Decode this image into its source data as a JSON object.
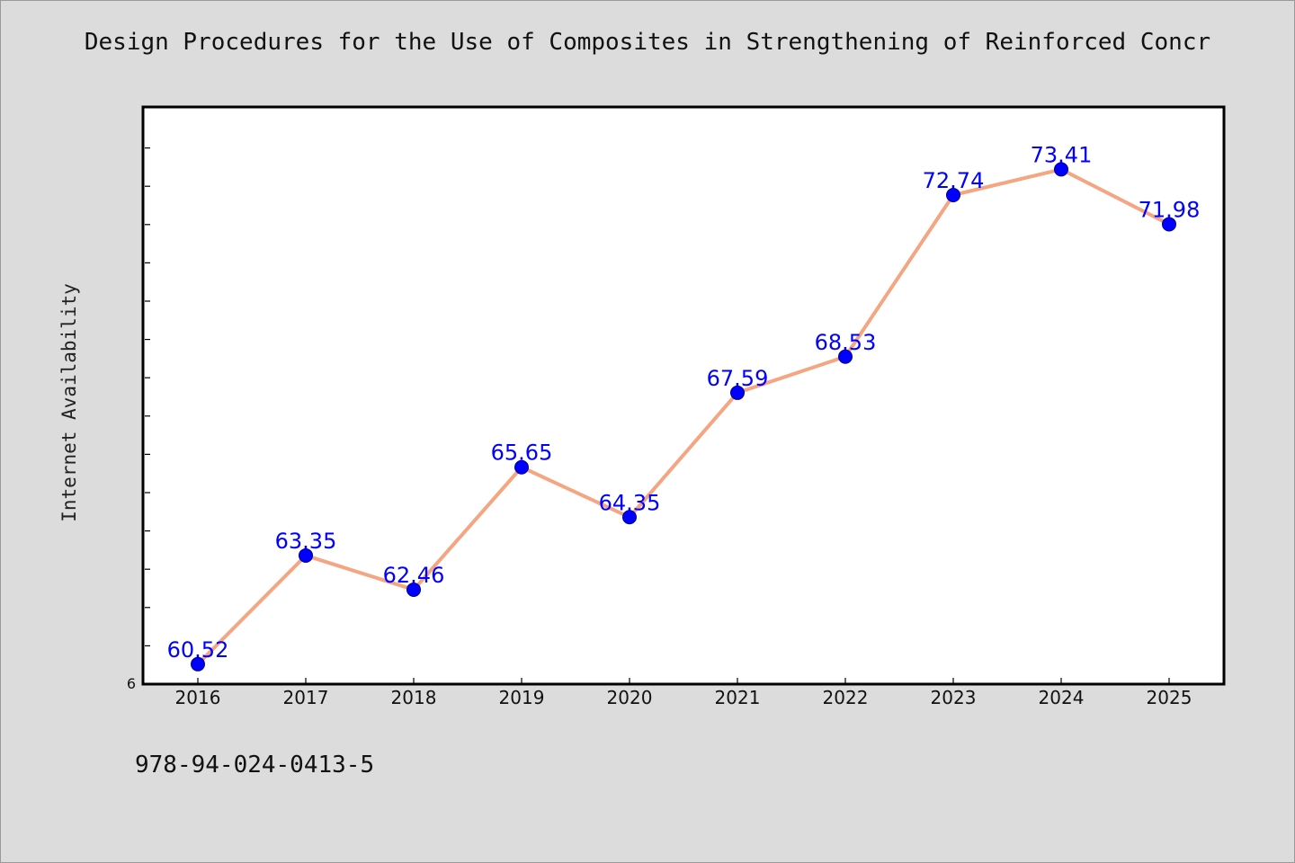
{
  "title": "Design Procedures for the Use of Composites in Strengthening of Reinforced Concr",
  "footer_text": "978-94-024-0413-5",
  "colors": {
    "background": "#dcdcdc",
    "plot_bg": "#ffffff",
    "line": "#f4a582",
    "marker": "#0000ff",
    "label": "#0000ff"
  },
  "chart_data": {
    "type": "line",
    "title": "Design Procedures for the Use of Composites in Strengthening of Reinforced Concr",
    "xlabel": "",
    "ylabel": "Internet Availability",
    "categories": [
      "2016",
      "2017",
      "2018",
      "2019",
      "2020",
      "2021",
      "2022",
      "2023",
      "2024",
      "2025"
    ],
    "series": [
      {
        "values": [
          60.52,
          63.35,
          62.46,
          65.65,
          64.35,
          67.59,
          68.53,
          72.74,
          73.41,
          71.98
        ]
      }
    ],
    "data_labels": [
      "60.52",
      "63.35",
      "62.46",
      "65.65",
      "64.35",
      "67.59",
      "68.53",
      "72.74",
      "73.41",
      "71.98"
    ],
    "ylim": [
      60,
      75
    ],
    "y_tick_labels": [
      "6"
    ],
    "grid": false,
    "legend": "none"
  }
}
